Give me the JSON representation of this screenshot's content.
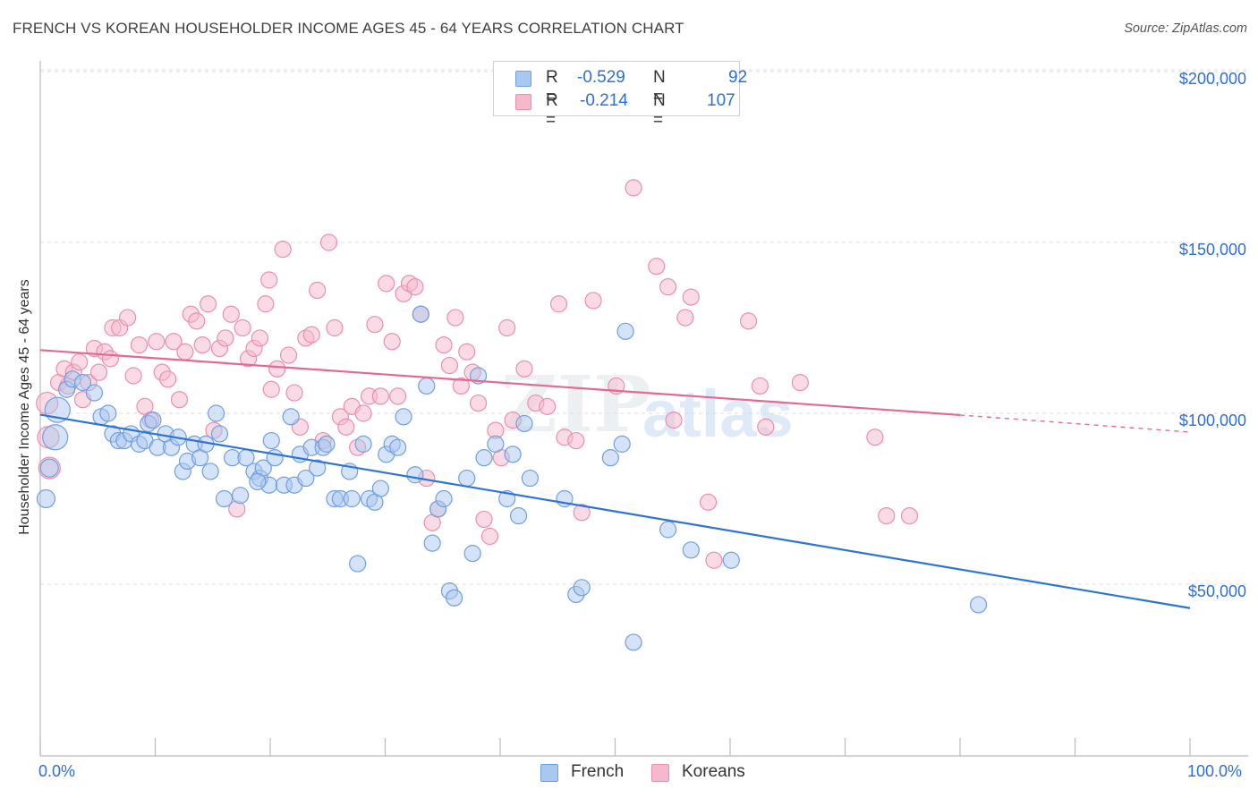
{
  "header": {
    "title": "FRENCH VS KOREAN HOUSEHOLDER INCOME AGES 45 - 64 YEARS CORRELATION CHART",
    "source": "Source: ZipAtlas.com"
  },
  "watermark": {
    "zip": "ZIP",
    "atlas": "atlas"
  },
  "legend": {
    "french": {
      "r_label": "R =",
      "r_value": "-0.529",
      "n_label": "N =",
      "n_value": "92"
    },
    "koreans": {
      "r_label": "R =",
      "r_value": "-0.214",
      "n_label": "N =",
      "n_value": "107"
    }
  },
  "bottom_legend": {
    "french": "French",
    "koreans": "Koreans"
  },
  "colors": {
    "french_fill": "#a9c8f0",
    "french_stroke": "#6f9fe0",
    "french_line": "#2f74d0",
    "korean_fill": "#f6b8cb",
    "korean_stroke": "#e98fad",
    "korean_line": "#e26a92",
    "axis_label": "#2f6fd0",
    "grid": "#dcdcdc"
  },
  "chart_data": {
    "type": "scatter",
    "title": "FRENCH VS KOREAN HOUSEHOLDER INCOME AGES 45 - 64 YEARS CORRELATION CHART",
    "xlabel": "",
    "ylabel": "Householder Income Ages 45 - 64 years",
    "xlim": [
      0,
      100
    ],
    "ylim": [
      0,
      215000
    ],
    "x_tick_labels": [
      "0.0%",
      "100.0%"
    ],
    "y_ticks": [
      50000,
      100000,
      150000,
      200000
    ],
    "y_tick_labels": [
      "$50,000",
      "$100,000",
      "$150,000",
      "$200,000"
    ],
    "grid": true,
    "legend_position": "top-center",
    "series": [
      {
        "name": "French",
        "R": -0.529,
        "N": 92,
        "trend": {
          "x": [
            0,
            100
          ],
          "y": [
            99600,
            43000
          ]
        },
        "points": [
          [
            0.5,
            75000,
            10
          ],
          [
            1.5,
            101000,
            14
          ],
          [
            1.3,
            93000,
            14
          ],
          [
            0.8,
            84000,
            10
          ],
          [
            2.3,
            107000,
            9
          ],
          [
            2.8,
            110000,
            9
          ],
          [
            3.7,
            109000,
            9
          ],
          [
            4.7,
            106000,
            9
          ],
          [
            5.3,
            99000,
            9
          ],
          [
            5.9,
            100000,
            9
          ],
          [
            6.3,
            94000,
            9
          ],
          [
            6.8,
            92000,
            9
          ],
          [
            7.3,
            92000,
            9
          ],
          [
            7.9,
            94000,
            9
          ],
          [
            8.6,
            91000,
            9
          ],
          [
            9.1,
            92000,
            9
          ],
          [
            9.4,
            97000,
            9
          ],
          [
            9.8,
            98000,
            9
          ],
          [
            10.2,
            90000,
            9
          ],
          [
            10.9,
            94000,
            9
          ],
          [
            11.4,
            90000,
            9
          ],
          [
            12.0,
            93000,
            9
          ],
          [
            12.4,
            83000,
            9
          ],
          [
            12.8,
            86000,
            9
          ],
          [
            13.4,
            91000,
            9
          ],
          [
            13.9,
            87000,
            9
          ],
          [
            14.4,
            91000,
            9
          ],
          [
            14.8,
            83000,
            9
          ],
          [
            15.3,
            100000,
            9
          ],
          [
            15.6,
            94000,
            9
          ],
          [
            16.0,
            75000,
            9
          ],
          [
            16.7,
            87000,
            9
          ],
          [
            17.4,
            76000,
            9
          ],
          [
            17.9,
            87000,
            9
          ],
          [
            18.6,
            83000,
            9
          ],
          [
            19.1,
            81000,
            9
          ],
          [
            19.4,
            84000,
            9
          ],
          [
            19.9,
            79000,
            9
          ],
          [
            20.1,
            92000,
            9
          ],
          [
            20.4,
            87000,
            9
          ],
          [
            21.2,
            79000,
            9
          ],
          [
            21.8,
            99000,
            9
          ],
          [
            22.1,
            79000,
            9
          ],
          [
            22.6,
            88000,
            9
          ],
          [
            23.1,
            81000,
            9
          ],
          [
            23.6,
            90000,
            9
          ],
          [
            24.1,
            84000,
            9
          ],
          [
            24.6,
            90000,
            9
          ],
          [
            24.9,
            91000,
            9
          ],
          [
            25.6,
            75000,
            9
          ],
          [
            26.1,
            75000,
            9
          ],
          [
            27.1,
            75000,
            9
          ],
          [
            27.6,
            56000,
            9
          ],
          [
            28.1,
            91000,
            9
          ],
          [
            28.6,
            75000,
            9
          ],
          [
            29.1,
            74000,
            9
          ],
          [
            29.6,
            78000,
            9
          ],
          [
            30.1,
            88000,
            9
          ],
          [
            30.6,
            91000,
            9
          ],
          [
            31.1,
            90000,
            9
          ],
          [
            31.6,
            99000,
            9
          ],
          [
            32.6,
            82000,
            9
          ],
          [
            33.1,
            129000,
            9
          ],
          [
            33.6,
            108000,
            9
          ],
          [
            34.1,
            62000,
            9
          ],
          [
            34.6,
            72000,
            9
          ],
          [
            35.1,
            75000,
            9
          ],
          [
            35.6,
            48000,
            9
          ],
          [
            36.0,
            46000,
            9
          ],
          [
            37.1,
            81000,
            9
          ],
          [
            37.6,
            59000,
            9
          ],
          [
            38.6,
            87000,
            9
          ],
          [
            39.6,
            91000,
            9
          ],
          [
            40.6,
            75000,
            9
          ],
          [
            41.1,
            88000,
            9
          ],
          [
            41.6,
            70000,
            9
          ],
          [
            42.1,
            97000,
            9
          ],
          [
            42.6,
            81000,
            9
          ],
          [
            45.6,
            75000,
            9
          ],
          [
            46.6,
            47000,
            9
          ],
          [
            47.1,
            49000,
            9
          ],
          [
            49.6,
            87000,
            9
          ],
          [
            50.6,
            91000,
            9
          ],
          [
            50.9,
            124000,
            9
          ],
          [
            51.6,
            33000,
            9
          ],
          [
            54.6,
            66000,
            9
          ],
          [
            56.6,
            60000,
            9
          ],
          [
            60.1,
            57000,
            9
          ],
          [
            81.6,
            44000,
            9
          ],
          [
            38.1,
            111000,
            9
          ],
          [
            26.9,
            83000,
            9
          ],
          [
            18.9,
            80000,
            9
          ]
        ]
      },
      {
        "name": "Koreans",
        "R": -0.214,
        "N": 107,
        "trend": {
          "x": [
            0,
            80
          ],
          "y": [
            118500,
            99500
          ]
        },
        "trend_dashed": {
          "x": [
            80,
            100
          ],
          "y": [
            99500,
            94500
          ]
        },
        "points": [
          [
            0.6,
            103000,
            12
          ],
          [
            0.7,
            93000,
            12
          ],
          [
            0.8,
            84000,
            12
          ],
          [
            1.6,
            109000,
            9
          ],
          [
            2.1,
            113000,
            9
          ],
          [
            2.4,
            108000,
            9
          ],
          [
            2.9,
            112000,
            9
          ],
          [
            3.4,
            115000,
            9
          ],
          [
            3.7,
            104000,
            9
          ],
          [
            4.2,
            109000,
            9
          ],
          [
            4.7,
            119000,
            9
          ],
          [
            5.1,
            112000,
            9
          ],
          [
            5.6,
            118000,
            9
          ],
          [
            6.1,
            116000,
            9
          ],
          [
            6.3,
            125000,
            9
          ],
          [
            6.9,
            125000,
            9
          ],
          [
            7.6,
            128000,
            9
          ],
          [
            8.1,
            111000,
            9
          ],
          [
            8.6,
            120000,
            9
          ],
          [
            9.1,
            102000,
            9
          ],
          [
            9.6,
            98000,
            9
          ],
          [
            10.1,
            121000,
            9
          ],
          [
            10.6,
            112000,
            9
          ],
          [
            11.1,
            110000,
            9
          ],
          [
            11.6,
            121000,
            9
          ],
          [
            12.1,
            104000,
            9
          ],
          [
            12.6,
            118000,
            9
          ],
          [
            13.1,
            129000,
            9
          ],
          [
            13.6,
            127000,
            9
          ],
          [
            14.1,
            120000,
            9
          ],
          [
            14.6,
            132000,
            9
          ],
          [
            15.1,
            95000,
            9
          ],
          [
            15.6,
            119000,
            9
          ],
          [
            16.1,
            122000,
            9
          ],
          [
            16.6,
            129000,
            9
          ],
          [
            17.1,
            72000,
            9
          ],
          [
            17.6,
            125000,
            9
          ],
          [
            18.1,
            116000,
            9
          ],
          [
            18.6,
            119000,
            9
          ],
          [
            19.1,
            122000,
            9
          ],
          [
            19.6,
            132000,
            9
          ],
          [
            19.9,
            139000,
            9
          ],
          [
            20.1,
            107000,
            9
          ],
          [
            20.6,
            113000,
            9
          ],
          [
            21.1,
            148000,
            9
          ],
          [
            21.6,
            117000,
            9
          ],
          [
            22.1,
            106000,
            9
          ],
          [
            22.6,
            96000,
            9
          ],
          [
            23.1,
            122000,
            9
          ],
          [
            23.6,
            123000,
            9
          ],
          [
            24.1,
            136000,
            9
          ],
          [
            24.6,
            92000,
            9
          ],
          [
            25.1,
            150000,
            9
          ],
          [
            25.6,
            125000,
            9
          ],
          [
            26.1,
            99000,
            9
          ],
          [
            26.6,
            96000,
            9
          ],
          [
            27.1,
            102000,
            9
          ],
          [
            27.6,
            90000,
            9
          ],
          [
            28.1,
            100000,
            9
          ],
          [
            28.6,
            105000,
            9
          ],
          [
            29.1,
            126000,
            9
          ],
          [
            29.6,
            105000,
            9
          ],
          [
            30.1,
            138000,
            9
          ],
          [
            30.6,
            121000,
            9
          ],
          [
            31.1,
            105000,
            9
          ],
          [
            31.6,
            135000,
            9
          ],
          [
            32.1,
            138000,
            9
          ],
          [
            32.6,
            137000,
            9
          ],
          [
            33.1,
            129000,
            9
          ],
          [
            33.6,
            81000,
            9
          ],
          [
            34.1,
            68000,
            9
          ],
          [
            34.6,
            72000,
            9
          ],
          [
            35.1,
            120000,
            9
          ],
          [
            35.6,
            114000,
            9
          ],
          [
            36.1,
            128000,
            9
          ],
          [
            36.6,
            108000,
            9
          ],
          [
            37.1,
            118000,
            9
          ],
          [
            37.6,
            112000,
            9
          ],
          [
            38.1,
            103000,
            9
          ],
          [
            38.6,
            69000,
            9
          ],
          [
            39.1,
            64000,
            9
          ],
          [
            39.6,
            95000,
            9
          ],
          [
            40.1,
            87000,
            9
          ],
          [
            40.6,
            125000,
            9
          ],
          [
            41.1,
            98000,
            9
          ],
          [
            42.1,
            113000,
            9
          ],
          [
            43.1,
            103000,
            9
          ],
          [
            44.1,
            102000,
            9
          ],
          [
            45.1,
            132000,
            9
          ],
          [
            45.6,
            93000,
            9
          ],
          [
            46.6,
            92000,
            9
          ],
          [
            47.1,
            71000,
            9
          ],
          [
            48.1,
            133000,
            9
          ],
          [
            50.1,
            108000,
            9
          ],
          [
            51.6,
            166000,
            9
          ],
          [
            53.6,
            143000,
            9
          ],
          [
            54.6,
            137000,
            9
          ],
          [
            55.1,
            98000,
            9
          ],
          [
            56.1,
            128000,
            9
          ],
          [
            56.6,
            134000,
            9
          ],
          [
            58.1,
            74000,
            9
          ],
          [
            58.6,
            57000,
            9
          ],
          [
            61.6,
            127000,
            9
          ],
          [
            62.6,
            108000,
            9
          ],
          [
            63.1,
            96000,
            9
          ],
          [
            66.1,
            109000,
            9
          ],
          [
            72.6,
            93000,
            9
          ],
          [
            73.6,
            70000,
            9
          ],
          [
            75.6,
            70000,
            9
          ]
        ]
      }
    ]
  }
}
